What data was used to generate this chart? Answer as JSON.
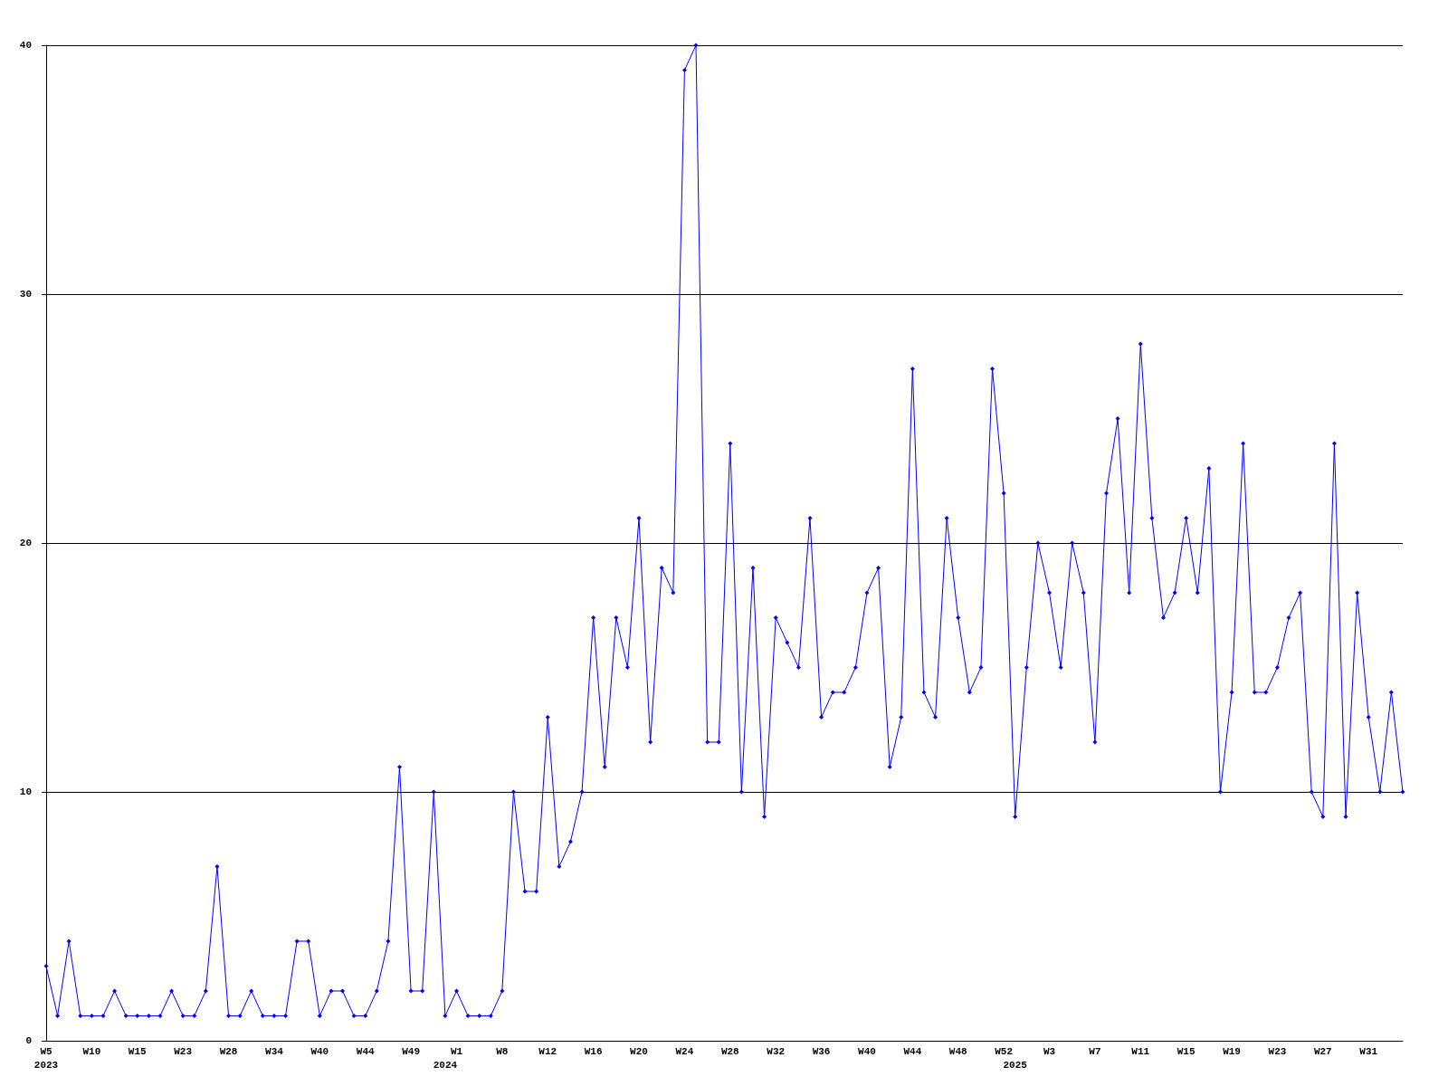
{
  "chart_data": {
    "type": "line",
    "categories": [
      "W5\n2023",
      null,
      null,
      null,
      "W10",
      null,
      null,
      null,
      "W15",
      null,
      null,
      null,
      "W23",
      null,
      null,
      null,
      "W28",
      null,
      null,
      null,
      "W34",
      null,
      null,
      null,
      "W40",
      null,
      null,
      null,
      "W44",
      null,
      null,
      null,
      "W49",
      null,
      null,
      "\n2024",
      "W1",
      null,
      null,
      null,
      "W8",
      null,
      null,
      null,
      "W12",
      null,
      null,
      null,
      "W16",
      null,
      null,
      null,
      "W20",
      null,
      null,
      null,
      "W24",
      null,
      null,
      null,
      "W28",
      null,
      null,
      null,
      "W32",
      null,
      null,
      null,
      "W36",
      null,
      null,
      null,
      "W40",
      null,
      null,
      null,
      "W44",
      null,
      null,
      null,
      "W48",
      null,
      null,
      null,
      "W52",
      "\n2025",
      null,
      null,
      "W3",
      null,
      null,
      null,
      "W7",
      null,
      null,
      null,
      "W11",
      null,
      null,
      null,
      "W15",
      null,
      null,
      null,
      "W19",
      null,
      null,
      null,
      "W23",
      null,
      null,
      null,
      "W27",
      null,
      null,
      null,
      "W31",
      null,
      null,
      null
    ],
    "series": [
      {
        "color": "#0000ff",
        "values": [
          3,
          1,
          4,
          1,
          1,
          1,
          2,
          1,
          1,
          1,
          1,
          2,
          1,
          1,
          2,
          7,
          1,
          1,
          2,
          1,
          1,
          1,
          4,
          4,
          1,
          2,
          2,
          1,
          1,
          2,
          4,
          11,
          2,
          2,
          10,
          1,
          2,
          1,
          1,
          1,
          2,
          10,
          6,
          6,
          13,
          7,
          8,
          10,
          17,
          11,
          17,
          15,
          21,
          12,
          19,
          18,
          39,
          40,
          12,
          12,
          24,
          10,
          19,
          9,
          17,
          16,
          15,
          21,
          13,
          14,
          14,
          15,
          18,
          19,
          11,
          13,
          27,
          14,
          13,
          21,
          17,
          14,
          15,
          27,
          22,
          9,
          15,
          20,
          18,
          15,
          20,
          18,
          12,
          22,
          25,
          18,
          28,
          21,
          17,
          18,
          21,
          18,
          23,
          10,
          14,
          24,
          14,
          14,
          15,
          17,
          18,
          10,
          9,
          24,
          9,
          18,
          13,
          10,
          14,
          10
        ]
      }
    ],
    "ylim": [
      0,
      40
    ],
    "yticks": [
      0,
      10,
      20,
      30,
      40
    ],
    "grid": "y",
    "marker": "diamond",
    "line_style": "solid",
    "legend": false
  }
}
